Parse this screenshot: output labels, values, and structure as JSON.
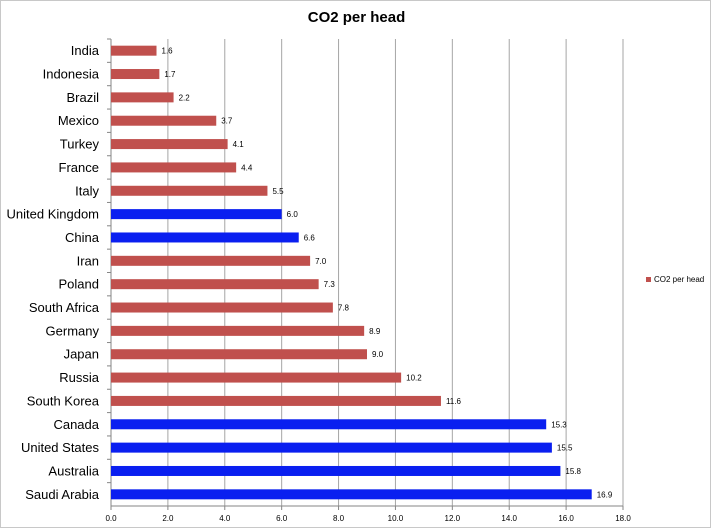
{
  "chart_data": {
    "type": "bar",
    "orientation": "horizontal",
    "title": "CO2 per head",
    "xlabel": "",
    "ylabel": "",
    "xlim": [
      0,
      18
    ],
    "x_ticks": [
      "0.0",
      "2.0",
      "4.0",
      "6.0",
      "8.0",
      "10.0",
      "12.0",
      "14.0",
      "16.0",
      "18.0"
    ],
    "grid": "vertical",
    "legend_position": "right",
    "categories": [
      "India",
      "Indonesia",
      "Brazil",
      "Mexico",
      "Turkey",
      "France",
      "Italy",
      "United Kingdom",
      "China",
      "Iran",
      "Poland",
      "South Africa",
      "Germany",
      "Japan",
      "Russia",
      "South Korea",
      "Canada",
      "United States",
      "Australia",
      "Saudi Arabia"
    ],
    "value_labels": [
      "1.6",
      "1.7",
      "2.2",
      "3.7",
      "4.1",
      "4.4",
      "5.5",
      "6.0",
      "6.6",
      "7.0",
      "7.3",
      "7.8",
      "8.9",
      "9.0",
      "10.2",
      "11.6",
      "15.3",
      "15.5",
      "15.8",
      "16.9"
    ],
    "series": [
      {
        "name": "CO2 per head",
        "values": [
          1.6,
          1.7,
          2.2,
          3.7,
          4.1,
          4.4,
          5.5,
          6.0,
          6.6,
          7.0,
          7.3,
          7.8,
          8.9,
          9.0,
          10.2,
          11.6,
          15.3,
          15.5,
          15.8,
          16.9
        ],
        "color": "#c0504d"
      }
    ],
    "highlight_color": "#0a1ff0",
    "highlighted_categories": [
      "United Kingdom",
      "China",
      "Canada",
      "United States",
      "Australia",
      "Saudi Arabia"
    ]
  }
}
